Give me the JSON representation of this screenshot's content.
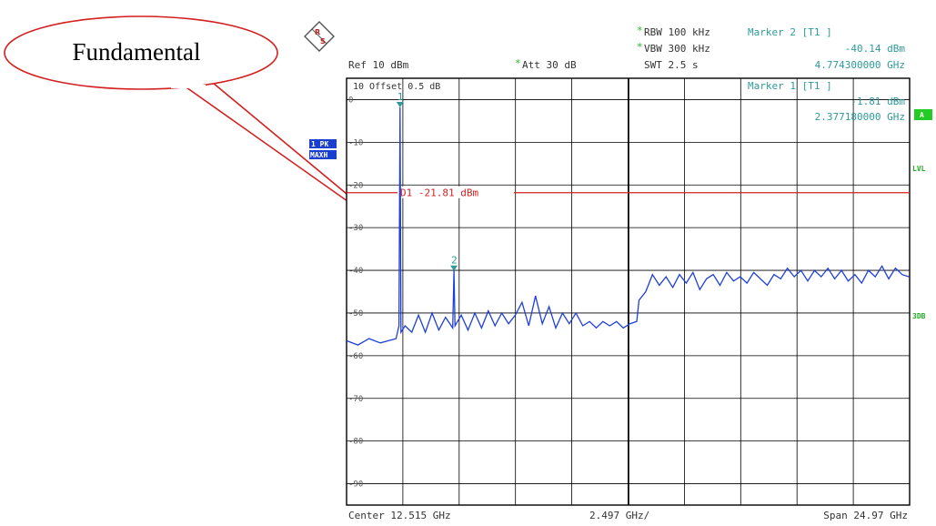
{
  "callout": {
    "text": "Fundamental"
  },
  "header": {
    "rbw": "RBW 100 kHz",
    "vbw": "VBW 300 kHz",
    "swt": "SWT 2.5 s",
    "ref": "Ref  10 dBm",
    "att": "Att  30 dB",
    "marker2_title": "Marker 2 [T1 ]",
    "marker2_level": "-40.14 dBm",
    "marker2_freq": "4.774300000 GHz"
  },
  "inner": {
    "offset": "10  Offset  0.5 dB",
    "marker1_title": "Marker 1 [T1 ]",
    "marker1_level": "-1.81 dBm",
    "marker1_freq": "2.377180000 GHz"
  },
  "badges": {
    "trace_pk": "1 PK",
    "trace_maxh": "MAXH",
    "a": "A",
    "lvl": "LVL",
    "db3": "3DB"
  },
  "footer": {
    "center": "Center 12.515 GHz",
    "per_div": "2.497 GHz/",
    "span": "Span 24.97 GHz"
  },
  "colors": {
    "trace": "#1f3fd8",
    "display_line": "#d42020",
    "marker": "#2f9a9a",
    "callout": "#d42020",
    "badge_bg": "#1a3fd0",
    "badge_green": "#22cc22"
  },
  "chart_data": {
    "type": "line",
    "xlabel": "",
    "ylabel": "",
    "xlim": [
      0.0,
      25.03
    ],
    "ylim": [
      -95,
      5
    ],
    "yticks": [
      0,
      -10,
      -20,
      -30,
      -40,
      -50,
      -60,
      -70,
      -80,
      -90
    ],
    "ytick_labels": [
      "0",
      "-10",
      "-20",
      "-30",
      "-40",
      "-50",
      "-60",
      "-70",
      "-80",
      "-90"
    ],
    "display_line": {
      "label": "D1 -21.81 dBm",
      "value": -21.81
    },
    "markers": [
      {
        "label": "1",
        "x": 2.377,
        "y": -1.81
      },
      {
        "label": "2",
        "x": 4.774,
        "y": -40.14
      }
    ],
    "series": [
      {
        "x": [
          0.0,
          0.5,
          1.0,
          1.5,
          2.2,
          2.33,
          2.377,
          2.42,
          2.6,
          2.9,
          3.2,
          3.5,
          3.8,
          4.1,
          4.4,
          4.72,
          4.774,
          4.82,
          5.1,
          5.4,
          5.7,
          6.0,
          6.3,
          6.6,
          6.9,
          7.2,
          7.5,
          7.8,
          8.1,
          8.4,
          8.7,
          9.0,
          9.3,
          9.6,
          9.9,
          10.2,
          10.5,
          10.8,
          11.1,
          11.4,
          11.7,
          12.0,
          12.3,
          12.6,
          12.9,
          13.0,
          13.3,
          13.6,
          13.9,
          14.2,
          14.5,
          14.8,
          15.1,
          15.4,
          15.7,
          16.0,
          16.3,
          16.6,
          16.9,
          17.2,
          17.5,
          17.8,
          18.1,
          18.4,
          18.7,
          19.0,
          19.3,
          19.6,
          19.9,
          20.2,
          20.5,
          20.8,
          21.1,
          21.4,
          21.7,
          22.0,
          22.3,
          22.6,
          22.9,
          23.2,
          23.5,
          23.8,
          24.1,
          24.4,
          24.7,
          25.0
        ],
        "y": [
          -56.5,
          -57.5,
          -56.0,
          -57.0,
          -56.0,
          -53.0,
          -1.8,
          -54.5,
          -53.0,
          -54.5,
          -50.5,
          -54.5,
          -50.0,
          -54.0,
          -51.0,
          -53.5,
          -40.1,
          -53.0,
          -50.5,
          -54.0,
          -50.0,
          -53.5,
          -49.5,
          -53.0,
          -50.0,
          -52.5,
          -50.5,
          -47.5,
          -53.0,
          -46.0,
          -52.5,
          -48.5,
          -53.5,
          -50.0,
          -52.5,
          -50.0,
          -53.0,
          -52.0,
          -53.5,
          -52.0,
          -53.0,
          -52.0,
          -53.5,
          -52.5,
          -52.0,
          -47.0,
          -45.0,
          -41.0,
          -43.5,
          -41.5,
          -44.0,
          -41.0,
          -43.0,
          -40.5,
          -44.5,
          -42.0,
          -41.0,
          -43.5,
          -40.5,
          -42.5,
          -41.5,
          -43.0,
          -40.5,
          -42.0,
          -43.5,
          -41.0,
          -42.0,
          -39.5,
          -41.5,
          -40.0,
          -42.5,
          -40.0,
          -41.5,
          -39.5,
          -42.0,
          -40.0,
          -42.5,
          -41.0,
          -43.0,
          -40.0,
          -41.5,
          -39.0,
          -42.0,
          -39.5,
          -41.0,
          -41.5
        ]
      }
    ]
  }
}
